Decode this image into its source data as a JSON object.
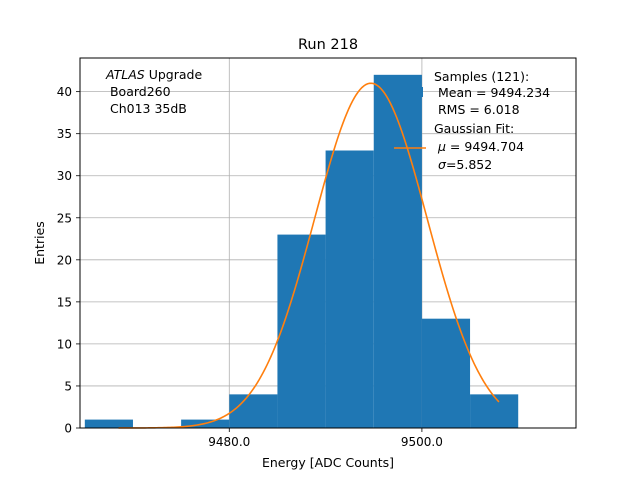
{
  "chart_data": {
    "type": "bar",
    "title": "Run 218",
    "xlabel": "Energy [ADC Counts]",
    "ylabel": "Entries",
    "xlim": [
      9464.5,
      9516.0
    ],
    "ylim": [
      0,
      44
    ],
    "grid": true,
    "x_ticks": [
      {
        "value": 9480.0,
        "label": "9480.0"
      },
      {
        "value": 9500.0,
        "label": "9500.0"
      }
    ],
    "y_ticks": [
      {
        "value": 0,
        "label": "0"
      },
      {
        "value": 5,
        "label": "5"
      },
      {
        "value": 10,
        "label": "10"
      },
      {
        "value": 15,
        "label": "15"
      },
      {
        "value": 20,
        "label": "20"
      },
      {
        "value": 25,
        "label": "25"
      },
      {
        "value": 30,
        "label": "30"
      },
      {
        "value": 35,
        "label": "35"
      },
      {
        "value": 40,
        "label": "40"
      }
    ],
    "histogram": {
      "color": "#1f77b4",
      "bins": [
        {
          "x0": 9465,
          "x1": 9470,
          "count": 1
        },
        {
          "x0": 9470,
          "x1": 9475,
          "count": 0
        },
        {
          "x0": 9475,
          "x1": 9480,
          "count": 1
        },
        {
          "x0": 9480,
          "x1": 9485,
          "count": 4
        },
        {
          "x0": 9485,
          "x1": 9490,
          "count": 23
        },
        {
          "x0": 9490,
          "x1": 9495,
          "count": 33
        },
        {
          "x0": 9495,
          "x1": 9500,
          "count": 42
        },
        {
          "x0": 9500,
          "x1": 9505,
          "count": 13
        },
        {
          "x0": 9505,
          "x1": 9510,
          "count": 4
        }
      ]
    },
    "gaussian_fit": {
      "color": "#ff7f0e",
      "mu": 9494.704,
      "sigma": 5.852,
      "amplitude": 41.0,
      "x_range": [
        9468.5,
        9508.0
      ]
    },
    "annotation": {
      "italic": "ATLAS",
      "rest": " Upgrade",
      "lines": [
        " Board260",
        " Ch013 35dB"
      ]
    },
    "legend": {
      "position": "top-right",
      "samples_lines": [
        "Samples (121):",
        " Mean = 9494.234",
        " RMS = 6.018"
      ],
      "fit_title": "Gaussian Fit:",
      "fit_mu_text": " = 9494.704",
      "fit_sigma_text": "=5.852"
    }
  }
}
